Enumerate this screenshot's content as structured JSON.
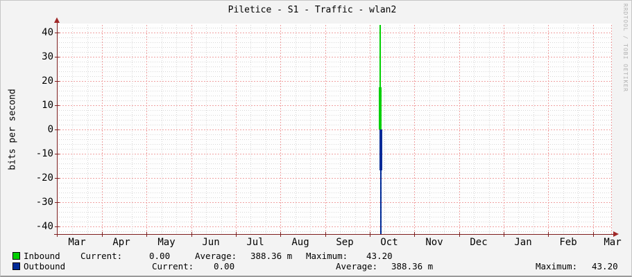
{
  "title": "Piletice - S1 - Traffic - wlan2",
  "watermark": "RRDTOOL / TOBI OETIKER",
  "y_axis_label": "bits per second",
  "y_ticks": [
    "40",
    "30",
    "20",
    "10",
    "0",
    "-10",
    "-20",
    "-30",
    "-40"
  ],
  "x_ticks": [
    "Mar",
    "Apr",
    "May",
    "Jun",
    "Jul",
    "Aug",
    "Sep",
    "Oct",
    "Nov",
    "Dec",
    "Jan",
    "Feb",
    "Mar"
  ],
  "colors": {
    "inbound": "#00CF00",
    "outbound": "#002A97",
    "axis": "#7d1c1c",
    "major_grid": "#f0a0a0",
    "minor_grid": "#d6d6d6"
  },
  "legend": {
    "rows": [
      {
        "name": "Inbound",
        "current_label": "Current:",
        "current": "0.00",
        "average_label": "Average:",
        "average": "388.36 m",
        "maximum_label": "Maximum:",
        "maximum": "43.20"
      },
      {
        "name": "Outbound",
        "current_label": "Current:",
        "current": "0.00",
        "average_label": "Average:",
        "average": "388.36 m",
        "maximum_label": "Maximum:",
        "maximum": "43.20"
      }
    ]
  },
  "chart_data": {
    "type": "line",
    "title": "Piletice - S1 - Traffic - wlan2",
    "ylabel": "bits per second",
    "ylim": [
      -43.2,
      43.2
    ],
    "y_tick_values": [
      40,
      30,
      20,
      10,
      0,
      -10,
      -20,
      -30,
      -40
    ],
    "x_tick_labels": [
      "Mar",
      "Apr",
      "May",
      "Jun",
      "Jul",
      "Aug",
      "Sep",
      "Oct",
      "Nov",
      "Dec",
      "Jan",
      "Feb",
      "Mar"
    ],
    "grid": {
      "major_y_step": 10,
      "minor_y_step": 2,
      "major_x": "month"
    },
    "legend_position": "bottom-left",
    "note": "Traffic is zero across the whole year except one narrow spike just before the Oct label (inbound plotted positive, outbound mirrored negative).",
    "series": [
      {
        "name": "Inbound",
        "color": "#00CF00",
        "values_all_year": 0,
        "spike": {
          "peak": 43.2,
          "solid_to": 17.4
        }
      },
      {
        "name": "Outbound",
        "color": "#002A97",
        "values_all_year": 0,
        "spike": {
          "peak": -43.2,
          "solid_to": -16.9
        }
      }
    ],
    "spike": {
      "x_frac": 0.583,
      "inbound_peak": 43.2,
      "inbound_solid_to": 17.4,
      "outbound_peak": -43.2,
      "outbound_solid_to": -16.9
    },
    "stats": {
      "inbound": {
        "current": "0.00",
        "average": "388.36 m",
        "maximum": "43.20"
      },
      "outbound": {
        "current": "0.00",
        "average": "388.36 m",
        "maximum": "43.20"
      }
    }
  }
}
